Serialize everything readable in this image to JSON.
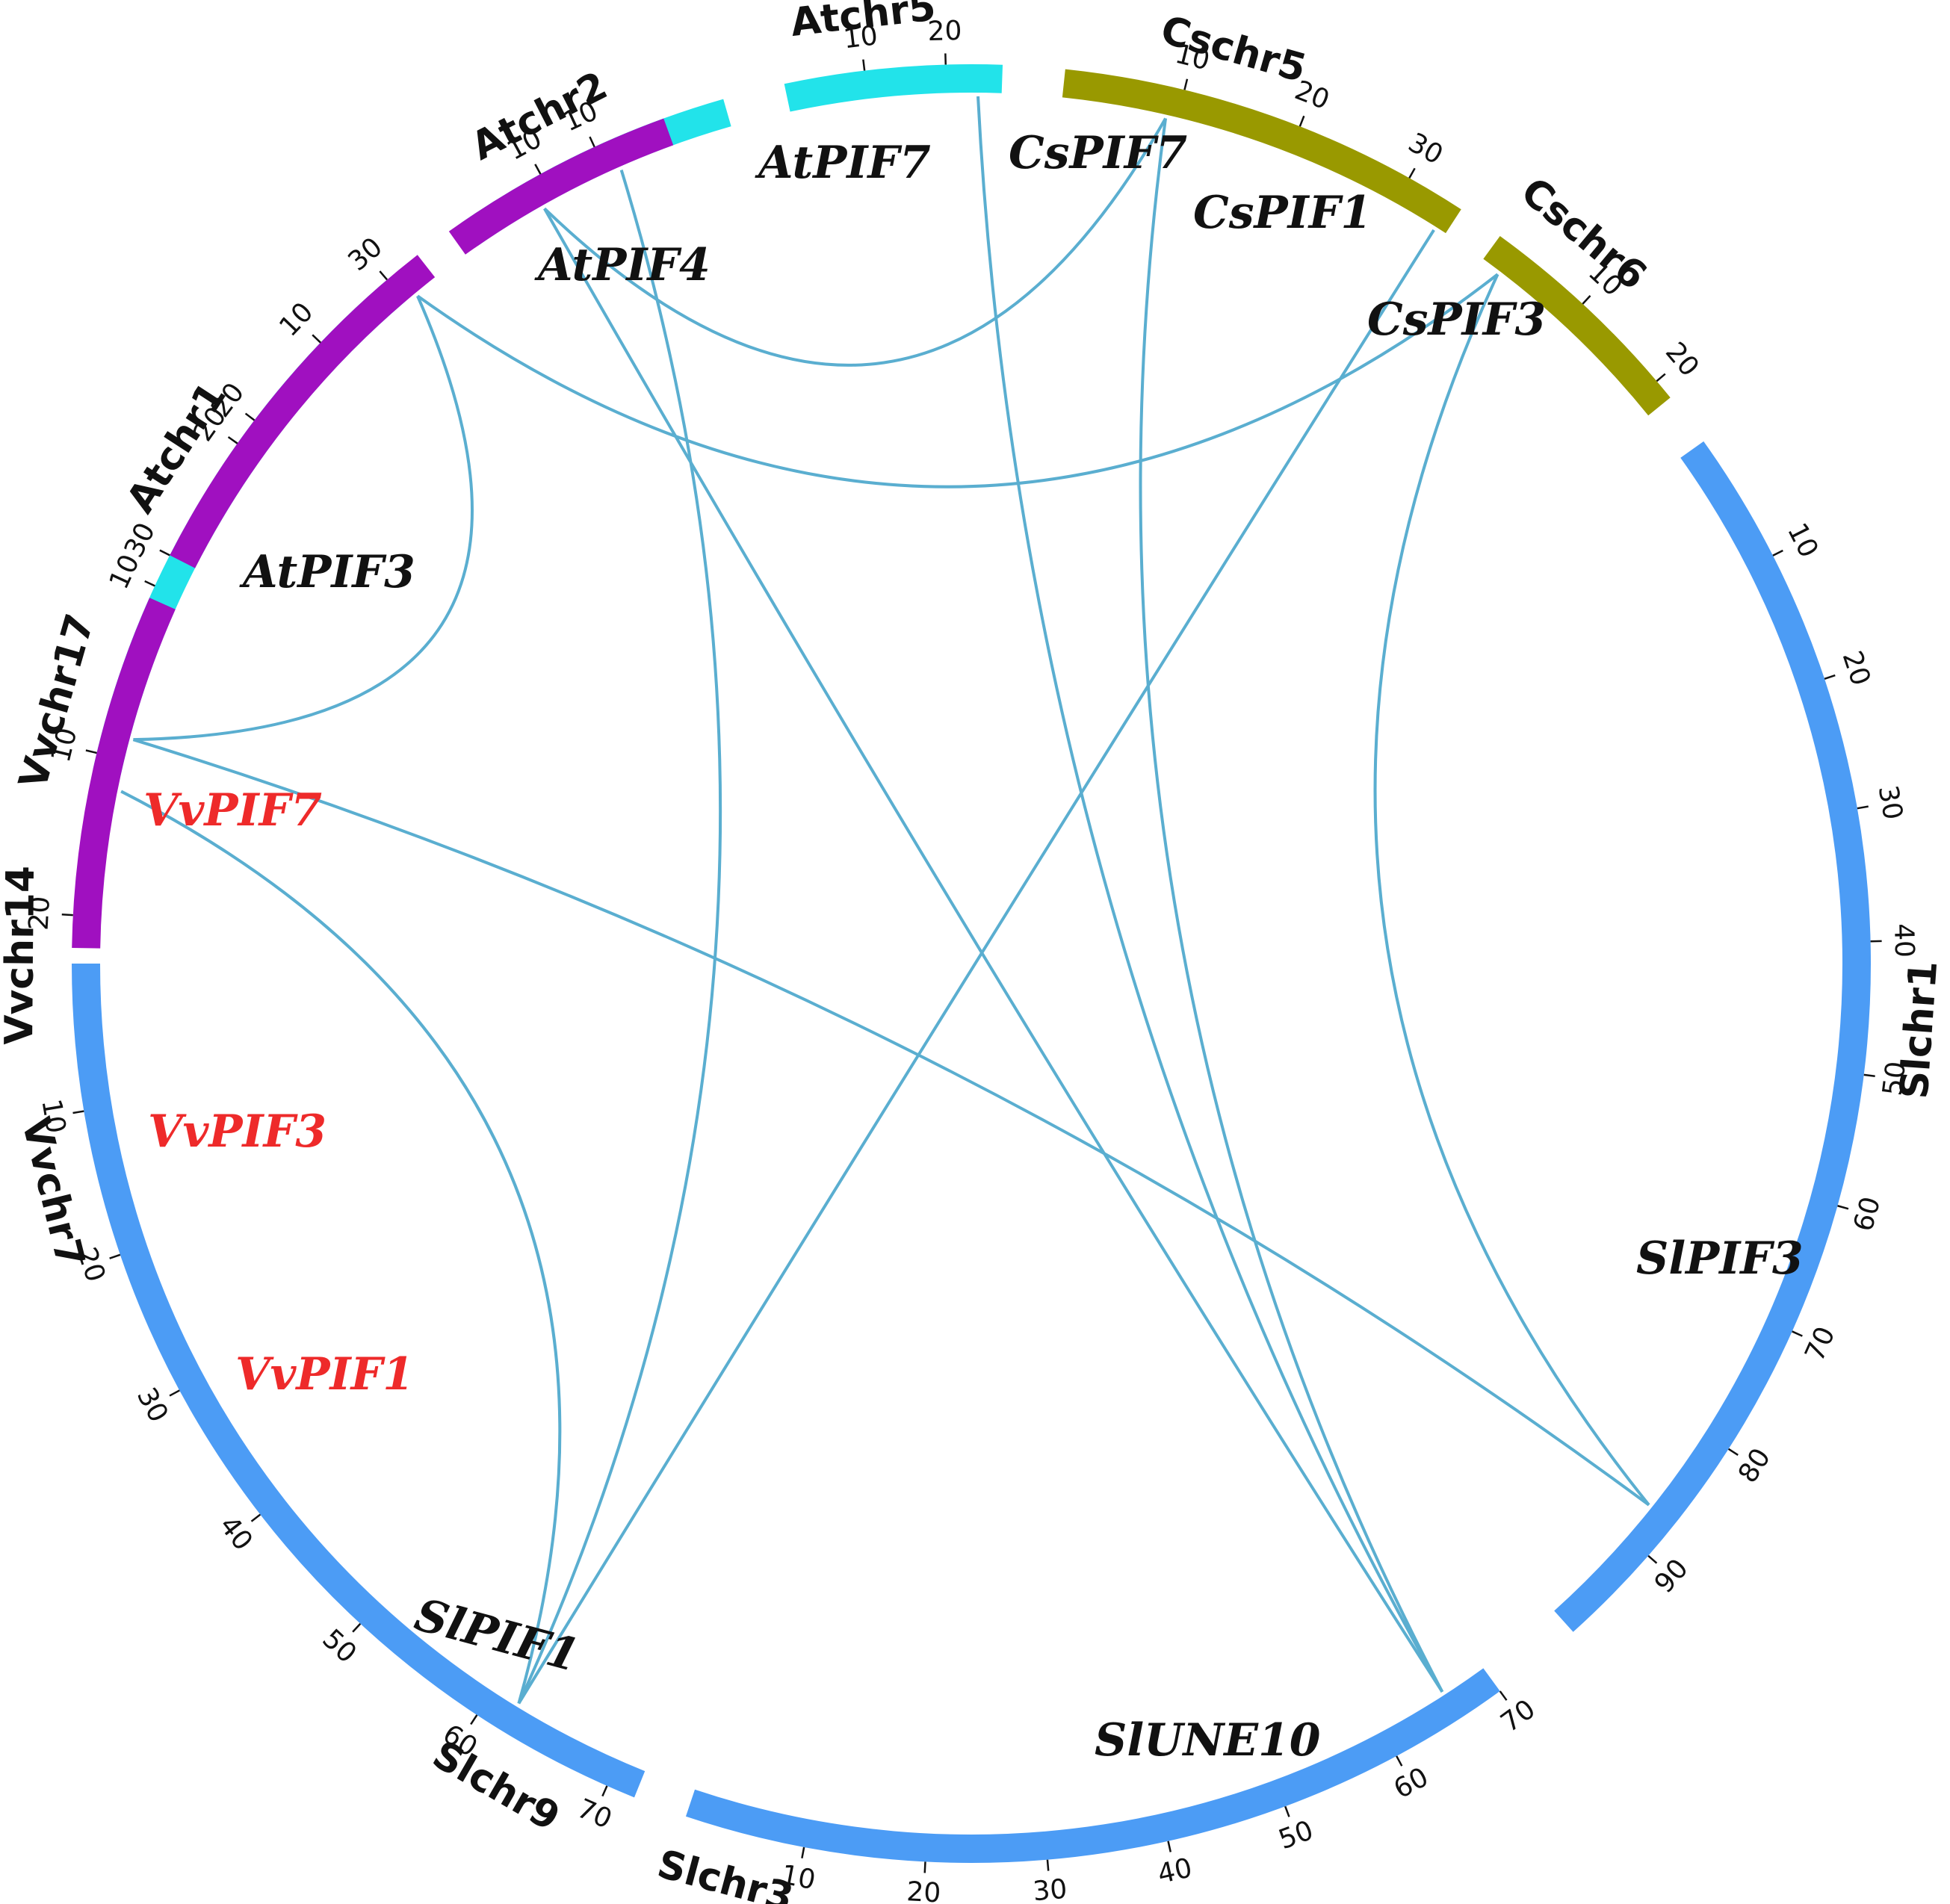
{
  "chromosomes": [
    {
      "id": "Atchr1",
      "label": "Atchr1",
      "color": "#22e3ea",
      "len": 30,
      "ticks": [
        10,
        20,
        30
      ]
    },
    {
      "id": "Atchr2",
      "label": "Atchr2",
      "color": "#22e3ea",
      "len": 19,
      "ticks": [
        10
      ]
    },
    {
      "id": "Atchr5",
      "label": "Atchr5",
      "color": "#22e3ea",
      "len": 27,
      "ticks": [
        10,
        20
      ]
    },
    {
      "id": "Cschr5",
      "label": "Cschr5",
      "color": "#999900",
      "len": 35,
      "ticks": [
        10,
        20,
        30
      ]
    },
    {
      "id": "Cschr6",
      "label": "Cschr6",
      "color": "#999900",
      "len": 22,
      "ticks": [
        10,
        20
      ]
    },
    {
      "id": "Slchr1",
      "label": "Slchr1",
      "color": "#4c9cf5",
      "len": 98,
      "ticks": [
        10,
        20,
        30,
        40,
        50,
        60,
        70,
        80,
        90
      ]
    },
    {
      "id": "Slchr3",
      "label": "Slchr3",
      "color": "#4c9cf5",
      "len": 70,
      "ticks": [
        10,
        20,
        30,
        40,
        50,
        60,
        70
      ]
    },
    {
      "id": "Slchr9",
      "label": "Slchr9",
      "color": "#4c9cf5",
      "len": 72,
      "ticks": [
        10,
        20,
        30,
        40,
        50,
        60,
        70
      ]
    },
    {
      "id": "Vvchr7",
      "label": "Vvchr7",
      "color": "#a010c0",
      "len": 22,
      "ticks": [
        10,
        20
      ]
    },
    {
      "id": "Vvchr14",
      "label": "Vvchr14",
      "color": "#a010c0",
      "len": 30,
      "ticks": [
        10,
        20,
        30
      ]
    },
    {
      "id": "Vvchr17",
      "label": "Vvchr17",
      "color": "#a010c0",
      "len": 18,
      "ticks": [
        10
      ]
    }
  ],
  "genes": [
    {
      "id": "AtPIF3",
      "label": "AtPIF3",
      "chr": "Atchr1",
      "pos": 2,
      "color": "#111111"
    },
    {
      "id": "AtPIF4",
      "label": "AtPIF4",
      "chr": "Atchr2",
      "pos": 11,
      "color": "#111111"
    },
    {
      "id": "AtPIF7",
      "label": "AtPIF7",
      "chr": "Atchr5",
      "pos": 24,
      "color": "#111111"
    },
    {
      "id": "CsPIF7",
      "label": "CsPIF7",
      "chr": "Cschr5",
      "pos": 9,
      "color": "#111111"
    },
    {
      "id": "CsPIF1",
      "label": "CsPIF1",
      "chr": "Cschr5",
      "pos": 34,
      "color": "#111111"
    },
    {
      "id": "CsPIF3",
      "label": "CsPIF3",
      "chr": "Cschr6",
      "pos": 2,
      "color": "#111111"
    },
    {
      "id": "SlPIF3",
      "label": "SlPIF3",
      "chr": "Slchr1",
      "pos": 87,
      "color": "#111111"
    },
    {
      "id": "SlUNE10",
      "label": "SlUNE10",
      "chr": "Slchr3",
      "pos": 66,
      "color": "#111111"
    },
    {
      "id": "SlPIF1",
      "label": "SlPIF1",
      "chr": "Slchr9",
      "pos": 62,
      "color": "#111111"
    },
    {
      "id": "VvPIF1",
      "label": "VvPIF1",
      "chr": "Vvchr7",
      "pos": 12,
      "color": "#ee2a2a"
    },
    {
      "id": "VvPIF3",
      "label": "VvPIF3",
      "chr": "Vvchr14",
      "pos": 2,
      "color": "#ee2a2a"
    },
    {
      "id": "VvPIF7",
      "label": "VvPIF7",
      "chr": "Vvchr17",
      "pos": 11,
      "color": "#ee2a2a"
    }
  ],
  "links": [
    {
      "from": "AtPIF3",
      "to": "SlPIF3"
    },
    {
      "from": "AtPIF3",
      "to": "VvPIF3"
    },
    {
      "from": "AtPIF4",
      "to": "SlPIF1"
    },
    {
      "from": "AtPIF7",
      "to": "SlUNE10"
    },
    {
      "from": "CsPIF7",
      "to": "SlUNE10"
    },
    {
      "from": "CsPIF7",
      "to": "VvPIF7"
    },
    {
      "from": "CsPIF1",
      "to": "SlPIF1"
    },
    {
      "from": "CsPIF3",
      "to": "VvPIF3"
    },
    {
      "from": "CsPIF3",
      "to": "SlPIF3"
    },
    {
      "from": "VvPIF7",
      "to": "SlUNE10"
    },
    {
      "from": "VvPIF1",
      "to": "SlPIF1"
    }
  ]
}
